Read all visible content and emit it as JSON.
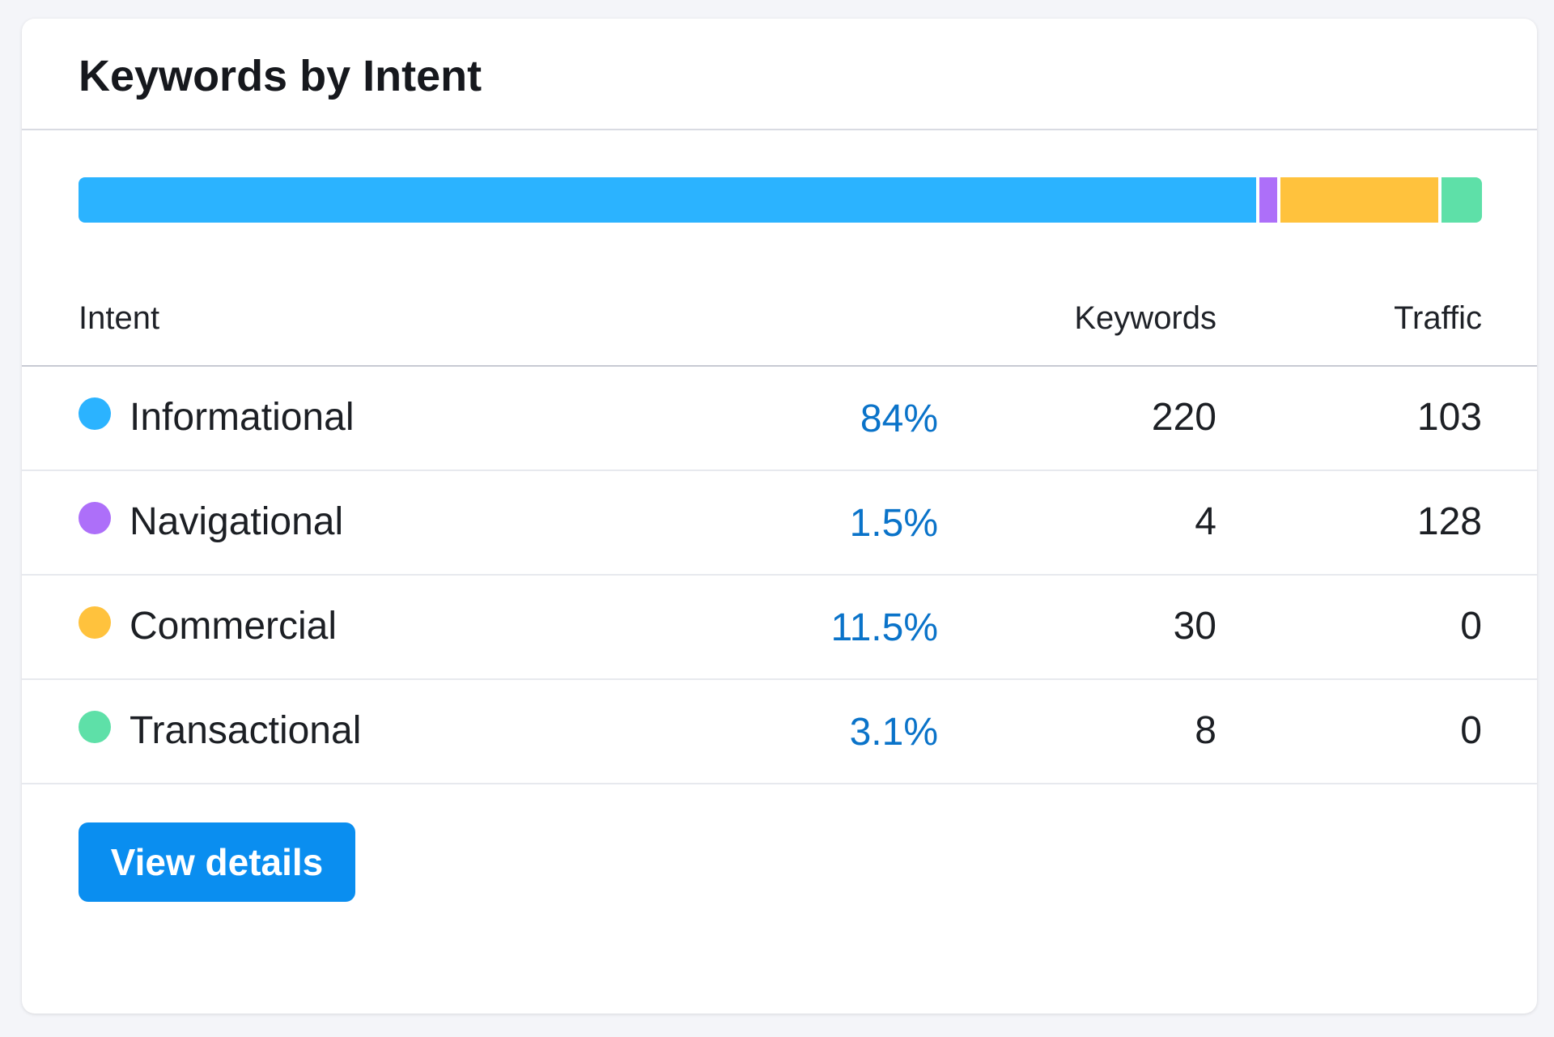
{
  "card": {
    "title": "Keywords by Intent"
  },
  "columns": {
    "intent": "Intent",
    "keywords": "Keywords",
    "traffic": "Traffic"
  },
  "intents": [
    {
      "label": "Informational",
      "percent": "84%",
      "share": 84,
      "keywords": "220",
      "traffic": "103",
      "color": "#2bb3ff"
    },
    {
      "label": "Navigational",
      "percent": "1.5%",
      "share": 1.5,
      "keywords": "4",
      "traffic": "128",
      "color": "#ad6ff9"
    },
    {
      "label": "Commercial",
      "percent": "11.5%",
      "share": 11.5,
      "keywords": "30",
      "traffic": "0",
      "color": "#ffc23d"
    },
    {
      "label": "Transactional",
      "percent": "3.1%",
      "share": 3.1,
      "keywords": "8",
      "traffic": "0",
      "color": "#5ee0a8"
    }
  ],
  "actions": {
    "view_details": "View details"
  }
}
